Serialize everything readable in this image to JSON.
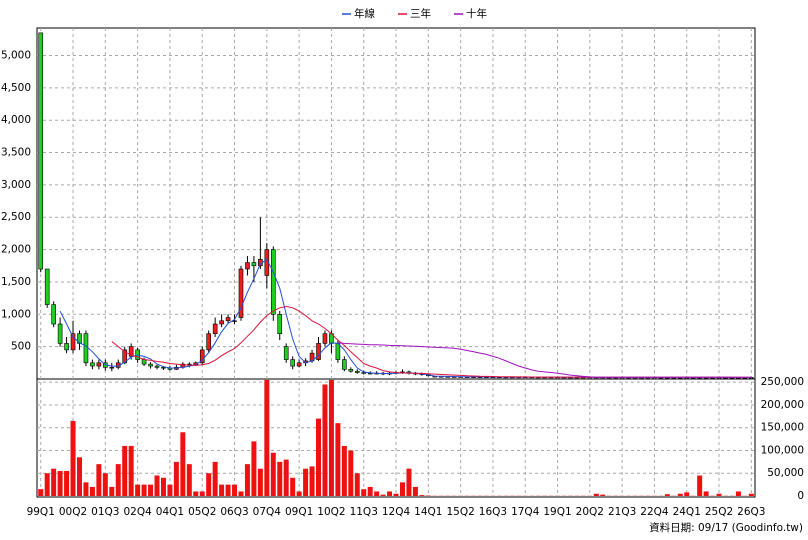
{
  "chart_data": [
    {
      "type": "candlestick",
      "categories": [
        "99Q1",
        null,
        null,
        null,
        null,
        "00Q2",
        null,
        null,
        null,
        null,
        "01Q3",
        null,
        null,
        null,
        null,
        "02Q4",
        null,
        null,
        null,
        null,
        "04Q1",
        null,
        null,
        null,
        null,
        "05Q2",
        null,
        null,
        null,
        null,
        "06Q3",
        null,
        null,
        null,
        null,
        "07Q4",
        null,
        null,
        null,
        null,
        "09Q1",
        null,
        null,
        null,
        null,
        "10Q2",
        null,
        null,
        null,
        null,
        "11Q3",
        null,
        null,
        null,
        null,
        "12Q4",
        null,
        null,
        null,
        null,
        "14Q1",
        null,
        null,
        null,
        null,
        "15Q2",
        null,
        null,
        null,
        null,
        "16Q3",
        null,
        null,
        null,
        null,
        "17Q4",
        null,
        null,
        null,
        null,
        "19Q1",
        null,
        null,
        null,
        null,
        "20Q2",
        null,
        null,
        null,
        null,
        "21Q3",
        null,
        null,
        null,
        null,
        "22Q4",
        null,
        null,
        null,
        null,
        "24Q1",
        null,
        null,
        null,
        null,
        "25Q2",
        null,
        null,
        null,
        null,
        "26Q3"
      ],
      "open": [
        5350,
        1700,
        1150,
        850,
        550,
        450,
        700,
        700,
        250,
        200,
        250,
        180,
        180,
        250,
        350,
        450,
        300,
        230,
        200,
        180,
        170,
        150,
        180,
        230,
        220,
        250,
        450,
        700,
        850,
        900,
        900,
        950,
        1700,
        1800,
        1750,
        1600,
        2000,
        1000,
        500,
        300,
        200,
        250,
        280,
        300,
        550,
        700,
        550,
        300,
        150,
        120,
        100,
        90,
        80,
        90,
        80,
        90,
        100,
        110,
        90,
        80,
        70,
        42,
        40,
        38,
        36,
        35,
        34,
        33,
        32,
        32,
        31,
        31,
        30,
        30,
        30,
        30,
        30,
        29,
        29,
        29,
        28,
        28,
        28,
        28,
        28,
        28,
        28,
        28,
        27,
        27,
        27,
        27,
        27,
        27,
        27,
        27,
        26,
        26,
        26,
        26,
        26,
        26,
        26,
        26,
        26,
        26,
        25,
        25,
        25,
        25,
        25
      ],
      "high": [
        5350,
        1700,
        1200,
        950,
        650,
        900,
        750,
        750,
        300,
        300,
        300,
        250,
        300,
        500,
        550,
        480,
        330,
        260,
        220,
        200,
        200,
        220,
        260,
        260,
        270,
        500,
        750,
        950,
        1000,
        1000,
        1000,
        1750,
        1900,
        1900,
        2500,
        2100,
        2050,
        1050,
        550,
        350,
        300,
        320,
        450,
        650,
        750,
        750,
        600,
        350,
        180,
        150,
        130,
        120,
        120,
        110,
        110,
        120,
        150,
        130,
        110,
        100,
        80,
        42,
        40,
        38,
        36,
        35,
        34,
        33,
        32,
        32,
        31,
        31,
        30,
        30,
        30,
        30,
        30,
        29,
        29,
        29,
        28,
        28,
        28,
        28,
        28,
        28,
        28,
        28,
        27,
        27,
        27,
        27,
        27,
        27,
        27,
        27,
        26,
        26,
        26,
        26,
        26,
        26,
        26,
        26,
        26,
        26,
        25,
        25,
        25,
        25,
        25
      ],
      "low": [
        1650,
        1100,
        800,
        500,
        400,
        400,
        450,
        200,
        150,
        150,
        130,
        120,
        150,
        230,
        300,
        250,
        200,
        160,
        150,
        140,
        130,
        140,
        160,
        180,
        200,
        220,
        400,
        650,
        800,
        850,
        850,
        900,
        1600,
        1500,
        1700,
        1400,
        900,
        600,
        250,
        150,
        180,
        200,
        250,
        280,
        500,
        400,
        250,
        120,
        100,
        80,
        70,
        70,
        70,
        60,
        60,
        70,
        80,
        70,
        60,
        50,
        40,
        42,
        40,
        38,
        36,
        35,
        34,
        33,
        32,
        32,
        31,
        31,
        30,
        30,
        30,
        30,
        30,
        29,
        29,
        29,
        28,
        28,
        28,
        28,
        28,
        28,
        28,
        28,
        27,
        27,
        27,
        27,
        27,
        27,
        27,
        27,
        26,
        26,
        26,
        26,
        26,
        26,
        26,
        26,
        26,
        26,
        25,
        25,
        25,
        25,
        25
      ],
      "close": [
        1700,
        1150,
        850,
        550,
        450,
        700,
        550,
        250,
        200,
        250,
        180,
        180,
        250,
        450,
        500,
        300,
        230,
        200,
        180,
        170,
        150,
        180,
        230,
        220,
        250,
        450,
        700,
        850,
        900,
        950,
        900,
        1700,
        1800,
        1750,
        1850,
        2000,
        1000,
        700,
        300,
        200,
        250,
        280,
        400,
        550,
        700,
        550,
        300,
        150,
        120,
        100,
        90,
        80,
        90,
        80,
        90,
        100,
        110,
        90,
        80,
        70,
        50,
        42,
        40,
        38,
        36,
        35,
        34,
        33,
        32,
        32,
        31,
        31,
        30,
        30,
        30,
        30,
        30,
        29,
        29,
        29,
        28,
        28,
        28,
        28,
        28,
        28,
        28,
        28,
        27,
        27,
        27,
        27,
        27,
        27,
        27,
        27,
        26,
        26,
        26,
        26,
        26,
        26,
        26,
        26,
        26,
        26,
        25,
        25,
        25,
        25,
        25
      ],
      "up_color": "#ee1c1c",
      "down_color": "#22cc22",
      "series": [
        {
          "name": "年線",
          "color": "#2050d8",
          "values": [
            null,
            null,
            null,
            1050,
            850,
            650,
            560,
            510,
            420,
            310,
            220,
            200,
            200,
            260,
            340,
            370,
            350,
            310,
            230,
            190,
            170,
            170,
            180,
            200,
            220,
            290,
            410,
            560,
            730,
            860,
            920,
            1100,
            1340,
            1550,
            1780,
            1850,
            1650,
            1400,
            1000,
            620,
            350,
            250,
            280,
            370,
            480,
            560,
            550,
            450,
            300,
            170,
            110,
            95,
            88,
            85,
            85,
            90,
            95,
            95,
            88,
            78,
            65,
            45,
            42,
            40,
            38,
            36,
            35,
            34,
            33,
            32,
            32,
            31,
            31,
            30,
            30,
            30,
            30,
            30,
            29,
            29,
            29,
            28,
            28,
            28,
            28,
            28,
            28,
            28,
            28,
            27,
            27,
            27,
            27,
            27,
            27,
            27,
            27,
            26,
            26,
            26,
            26,
            26,
            26,
            26,
            26,
            26,
            26,
            25,
            25,
            25,
            25
          ]
        },
        {
          "name": "三年",
          "color": "#e0103c",
          "values": [
            null,
            null,
            null,
            null,
            null,
            null,
            null,
            null,
            null,
            null,
            null,
            580,
            500,
            420,
            370,
            340,
            300,
            290,
            270,
            260,
            240,
            230,
            220,
            215,
            210,
            220,
            240,
            290,
            360,
            420,
            470,
            560,
            660,
            760,
            880,
            980,
            1050,
            1100,
            1120,
            1100,
            1050,
            980,
            900,
            850,
            780,
            700,
            600,
            520,
            420,
            330,
            240,
            200,
            170,
            130,
            110,
            100,
            95,
            90,
            88,
            86,
            80,
            75,
            70,
            65,
            60,
            55,
            50,
            46,
            42,
            40,
            38,
            36,
            35,
            34,
            33,
            32,
            31,
            31,
            30,
            30,
            30,
            29,
            29,
            29,
            29,
            28,
            28,
            28,
            28,
            28,
            28,
            27,
            27,
            27,
            27,
            27,
            27,
            27,
            27,
            26,
            26,
            26,
            26,
            26,
            26,
            26,
            26,
            26,
            26,
            25,
            25
          ]
        },
        {
          "name": "十年",
          "color": "#a010c0",
          "values": [
            null,
            null,
            null,
            null,
            null,
            null,
            null,
            null,
            null,
            null,
            null,
            null,
            null,
            null,
            null,
            null,
            null,
            null,
            null,
            null,
            null,
            null,
            null,
            null,
            null,
            null,
            null,
            null,
            null,
            null,
            null,
            null,
            null,
            null,
            null,
            null,
            null,
            null,
            null,
            null,
            null,
            null,
            null,
            null,
            null,
            null,
            560,
            550,
            545,
            540,
            535,
            530,
            530,
            525,
            520,
            518,
            515,
            510,
            505,
            500,
            495,
            490,
            485,
            480,
            475,
            460,
            440,
            420,
            400,
            380,
            350,
            320,
            280,
            240,
            200,
            170,
            140,
            120,
            110,
            100,
            90,
            75,
            60,
            50,
            40,
            32,
            28,
            28,
            28,
            28,
            28,
            28,
            28,
            28,
            28,
            28,
            28,
            28,
            28,
            28,
            28,
            28,
            28,
            28,
            28,
            28,
            28,
            28,
            28,
            28,
            28
          ]
        }
      ],
      "ylim": [
        0,
        5425
      ],
      "yticks": [
        500,
        {
          "value": 1000,
          "label": "1,000"
        },
        {
          "value": 1500,
          "label": "1,500"
        },
        {
          "value": 2000,
          "label": "2,000"
        },
        {
          "value": 2500,
          "label": "2,500"
        },
        {
          "value": 3000,
          "label": "3,000"
        },
        {
          "value": 3500,
          "label": "3,500"
        },
        {
          "value": 4000,
          "label": "4,000"
        },
        {
          "value": 4500,
          "label": "4,500"
        },
        {
          "value": 5000,
          "label": "5,000"
        }
      ],
      "grid": true,
      "legend": "top"
    },
    {
      "type": "bar",
      "values": [
        15000,
        50000,
        60000,
        55000,
        55000,
        165000,
        85000,
        30000,
        20000,
        70000,
        50000,
        20000,
        70000,
        110000,
        110000,
        25000,
        25000,
        25000,
        45000,
        40000,
        25000,
        75000,
        140000,
        70000,
        10000,
        10000,
        50000,
        75000,
        25000,
        25000,
        25000,
        10000,
        70000,
        120000,
        60000,
        255000,
        95000,
        75000,
        80000,
        40000,
        10000,
        60000,
        65000,
        170000,
        245000,
        255000,
        160000,
        110000,
        100000,
        50000,
        15000,
        20000,
        10000,
        3000,
        10000,
        5000,
        30000,
        60000,
        20000,
        2000,
        1000,
        500,
        500,
        500,
        500,
        500,
        500,
        500,
        500,
        500,
        500,
        500,
        500,
        500,
        500,
        500,
        500,
        500,
        500,
        500,
        500,
        500,
        500,
        500,
        500,
        500,
        5000,
        3000,
        500,
        500,
        500,
        500,
        500,
        500,
        500,
        500,
        500,
        4000,
        500,
        5000,
        8000,
        500,
        45000,
        10000,
        500,
        5000,
        500,
        500,
        10000,
        500,
        5000
      ],
      "color": "#ee1111",
      "ylim": [
        0,
        257000
      ],
      "yticks": [
        0,
        {
          "value": 50000,
          "label": "50,000"
        },
        {
          "value": 100000,
          "label": "100,000"
        },
        {
          "value": 150000,
          "label": "150,000"
        },
        {
          "value": 200000,
          "label": "200,000"
        },
        {
          "value": 250000,
          "label": "250,000"
        }
      ],
      "grid": true
    }
  ],
  "footer": "資料日期: 09/17 (Goodinfo.tw)"
}
